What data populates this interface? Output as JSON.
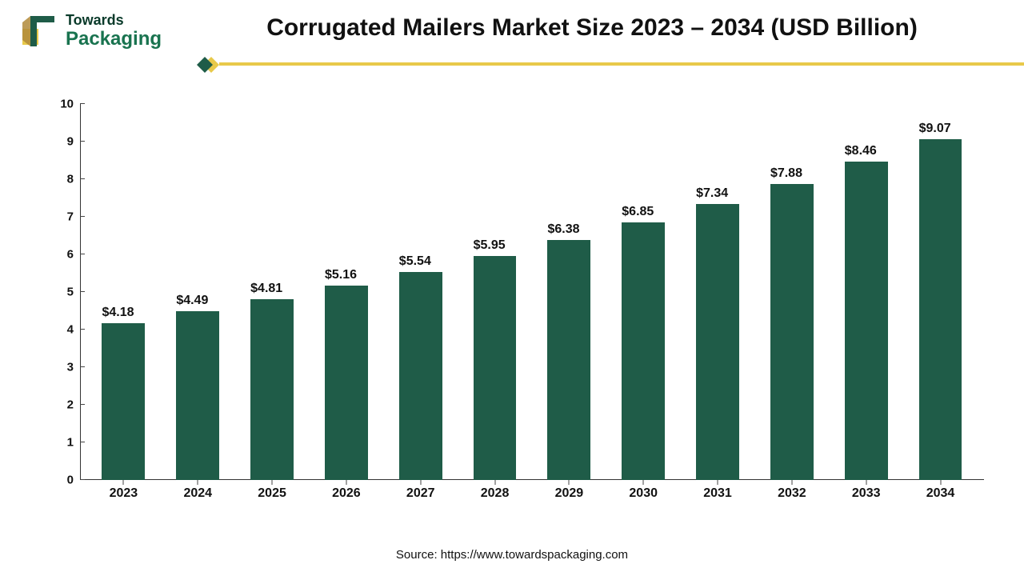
{
  "logo": {
    "line1": "Towards",
    "line2": "Packaging",
    "box_color_dark": "#b08a3a",
    "box_color_light": "#e8c94a",
    "accent_green": "#19734f"
  },
  "title": "Corrugated Mailers Market Size 2023 – 2034 (USD Billion)",
  "divider": {
    "line_color": "#e8c94a",
    "diamond_green": "#1f5c48",
    "diamond_yellow": "#e8c94a"
  },
  "chart": {
    "type": "bar",
    "categories": [
      "2023",
      "2024",
      "2025",
      "2026",
      "2027",
      "2028",
      "2029",
      "2030",
      "2031",
      "2032",
      "2033",
      "2034"
    ],
    "values": [
      4.18,
      4.49,
      4.81,
      5.16,
      5.54,
      5.95,
      6.38,
      6.85,
      7.34,
      7.88,
      8.46,
      9.07
    ],
    "value_labels": [
      "$4.18",
      "$4.49",
      "$4.81",
      "$5.16",
      "$5.54",
      "$5.95",
      "$6.38",
      "$6.85",
      "$7.34",
      "$7.88",
      "$8.46",
      "$9.07"
    ],
    "bar_color": "#1f5c48",
    "ylim": [
      0,
      10
    ],
    "ytick_step": 1,
    "yticks": [
      "0",
      "1",
      "2",
      "3",
      "4",
      "5",
      "6",
      "7",
      "8",
      "9",
      "10"
    ],
    "axis_color": "#333333",
    "label_fontsize": 16,
    "label_fontweight": "700",
    "bar_width_ratio": 0.58,
    "background_color": "#ffffff"
  },
  "source": "Source: https://www.towardspackaging.com"
}
